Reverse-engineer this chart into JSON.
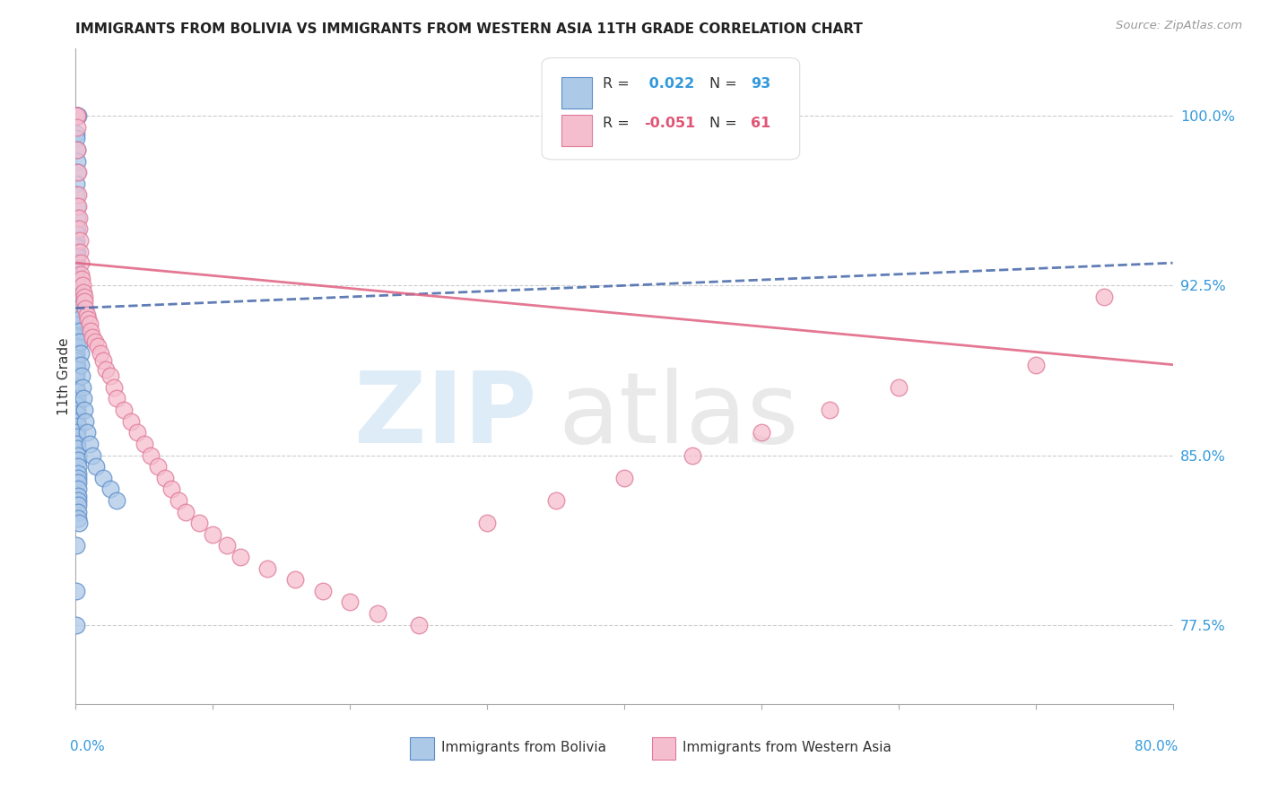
{
  "title": "IMMIGRANTS FROM BOLIVIA VS IMMIGRANTS FROM WESTERN ASIA 11TH GRADE CORRELATION CHART",
  "source": "Source: ZipAtlas.com",
  "ylabel": "11th Grade",
  "y_ticks": [
    77.5,
    85.0,
    92.5,
    100.0
  ],
  "y_tick_labels": [
    "77.5%",
    "85.0%",
    "92.5%",
    "100.0%"
  ],
  "bolivia_color": "#adc9e8",
  "bolivia_edge": "#5b8cc8",
  "western_asia_color": "#f5bece",
  "western_asia_edge": "#e07898",
  "blue_line_color": "#4466aa",
  "pink_line_color": "#e06080",
  "background_color": "#ffffff",
  "xmin": 0.0,
  "xmax": 80.0,
  "ymin": 74.0,
  "ymax": 103.0,
  "bolivia_x": [
    0.05,
    0.08,
    0.1,
    0.12,
    0.15,
    0.05,
    0.07,
    0.09,
    0.11,
    0.13,
    0.05,
    0.06,
    0.08,
    0.1,
    0.12,
    0.05,
    0.06,
    0.07,
    0.09,
    0.11,
    0.05,
    0.06,
    0.07,
    0.08,
    0.1,
    0.05,
    0.06,
    0.07,
    0.08,
    0.09,
    0.05,
    0.06,
    0.07,
    0.08,
    0.09,
    0.05,
    0.06,
    0.07,
    0.08,
    0.09,
    0.05,
    0.06,
    0.07,
    0.08,
    0.09,
    0.05,
    0.06,
    0.07,
    0.08,
    0.09,
    0.1,
    0.11,
    0.12,
    0.13,
    0.14,
    0.1,
    0.11,
    0.12,
    0.13,
    0.14,
    0.15,
    0.16,
    0.17,
    0.18,
    0.19,
    0.15,
    0.16,
    0.17,
    0.18,
    0.19,
    0.2,
    0.22,
    0.24,
    0.26,
    0.28,
    0.3,
    0.35,
    0.4,
    0.45,
    0.5,
    0.55,
    0.6,
    0.7,
    0.8,
    1.0,
    1.2,
    1.5,
    2.0,
    2.5,
    3.0,
    0.05,
    0.05,
    0.05
  ],
  "bolivia_y": [
    100.0,
    100.0,
    100.0,
    100.0,
    100.0,
    99.2,
    99.0,
    98.5,
    98.0,
    97.5,
    97.0,
    96.5,
    96.0,
    95.5,
    95.0,
    94.8,
    94.5,
    94.2,
    94.0,
    93.8,
    93.5,
    93.2,
    93.0,
    92.8,
    92.5,
    92.5,
    92.3,
    92.2,
    92.0,
    91.8,
    91.5,
    91.3,
    91.2,
    91.0,
    90.8,
    90.5,
    90.3,
    90.2,
    90.0,
    89.8,
    89.5,
    89.3,
    89.2,
    89.0,
    88.8,
    88.5,
    88.3,
    88.0,
    87.8,
    87.5,
    87.2,
    87.0,
    86.8,
    86.5,
    86.3,
    86.0,
    85.8,
    85.5,
    85.3,
    85.0,
    84.8,
    84.5,
    84.2,
    84.0,
    83.8,
    83.5,
    83.2,
    83.0,
    82.8,
    82.5,
    82.2,
    82.0,
    91.5,
    91.0,
    90.5,
    90.0,
    89.5,
    89.0,
    88.5,
    88.0,
    87.5,
    87.0,
    86.5,
    86.0,
    85.5,
    85.0,
    84.5,
    84.0,
    83.5,
    83.0,
    81.0,
    79.0,
    77.5
  ],
  "western_asia_x": [
    0.06,
    0.08,
    0.1,
    0.12,
    0.15,
    0.18,
    0.2,
    0.22,
    0.25,
    0.28,
    0.3,
    0.35,
    0.4,
    0.45,
    0.5,
    0.55,
    0.6,
    0.65,
    0.7,
    0.8,
    0.9,
    1.0,
    1.1,
    1.2,
    1.4,
    1.6,
    1.8,
    2.0,
    2.2,
    2.5,
    2.8,
    3.0,
    3.5,
    4.0,
    4.5,
    5.0,
    5.5,
    6.0,
    6.5,
    7.0,
    7.5,
    8.0,
    9.0,
    10.0,
    11.0,
    12.0,
    14.0,
    16.0,
    18.0,
    20.0,
    22.0,
    25.0,
    30.0,
    35.0,
    40.0,
    45.0,
    50.0,
    55.0,
    60.0,
    70.0,
    75.0
  ],
  "western_asia_y": [
    100.0,
    100.0,
    99.5,
    98.5,
    97.5,
    96.5,
    96.0,
    95.5,
    95.0,
    94.5,
    94.0,
    93.5,
    93.0,
    92.8,
    92.5,
    92.2,
    92.0,
    91.8,
    91.5,
    91.2,
    91.0,
    90.8,
    90.5,
    90.2,
    90.0,
    89.8,
    89.5,
    89.2,
    88.8,
    88.5,
    88.0,
    87.5,
    87.0,
    86.5,
    86.0,
    85.5,
    85.0,
    84.5,
    84.0,
    83.5,
    83.0,
    82.5,
    82.0,
    81.5,
    81.0,
    80.5,
    80.0,
    79.5,
    79.0,
    78.5,
    78.0,
    77.5,
    82.0,
    83.0,
    84.0,
    85.0,
    86.0,
    87.0,
    88.0,
    89.0,
    92.0
  ],
  "blue_trendline_x": [
    0.0,
    80.0
  ],
  "blue_trendline_y": [
    91.5,
    93.5
  ],
  "pink_trendline_x": [
    0.0,
    80.0
  ],
  "pink_trendline_y": [
    93.5,
    89.0
  ]
}
